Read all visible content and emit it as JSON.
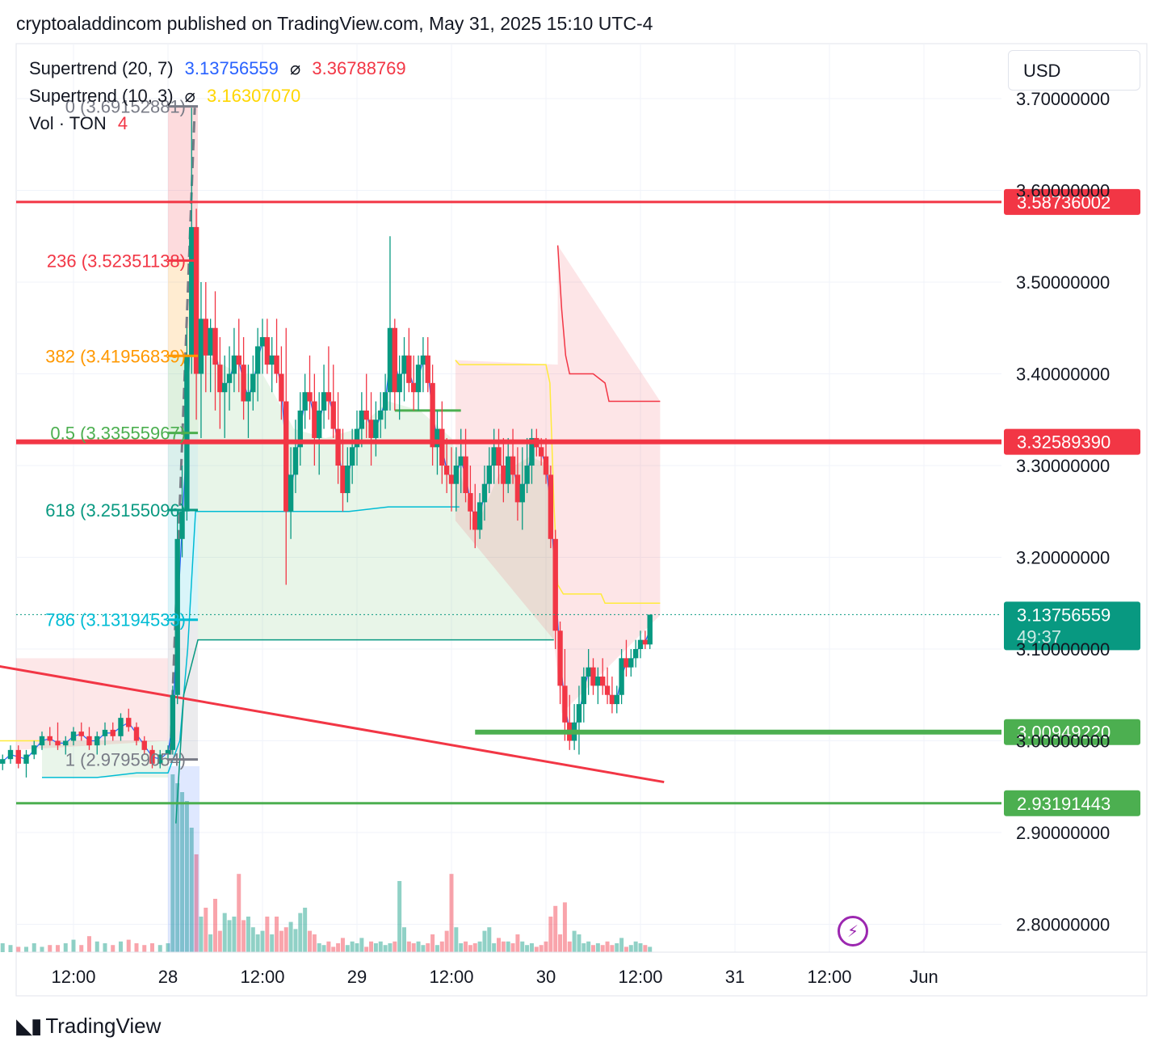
{
  "header": {
    "publisher_line": "cryptoaladdincom published on TradingView.com, May 31, 2025 15:10 UTC-4"
  },
  "legend": {
    "supertrend1_label": "Supertrend (20, 7)",
    "supertrend1_up": "3.13756559",
    "supertrend1_sep": "⌀",
    "supertrend1_down": "3.36788769",
    "supertrend2_label": "Supertrend (10, 3)",
    "supertrend2_sep": "⌀",
    "supertrend2_value": "3.16307070",
    "vol_label": "Vol · TON",
    "vol_value": "4"
  },
  "currency_button": "USD",
  "footer": {
    "brand": "TradingView",
    "logo_icon": "tradingview-logo-icon"
  },
  "lightning_icon": "lightning-icon",
  "colors": {
    "up": "#089981",
    "down": "#f23645",
    "supertrend_up_line": "#2962ff",
    "supertrend_yellow": "#ffeb3b",
    "fib_red": "#f23645",
    "fib_orange": "#ff9800",
    "fib_green": "#4caf50",
    "fib_teal": "#089981",
    "fib_cyan": "#00bcd4",
    "fib_gray": "#787b86",
    "level_green": "#4caf50",
    "price_label_teal": "#089981"
  },
  "chart_data": {
    "type": "candlestick",
    "title": "",
    "price_axis": {
      "ticks": [
        "3.70000000",
        "3.60000000",
        "3.50000000",
        "3.40000000",
        "3.30000000",
        "3.20000000",
        "3.10000000",
        "3.00000000",
        "2.90000000",
        "2.80000000"
      ],
      "tick_values": [
        3.7,
        3.6,
        3.5,
        3.4,
        3.3,
        3.2,
        3.1,
        3.0,
        2.9,
        2.8
      ],
      "range": [
        2.77,
        3.72
      ]
    },
    "time_axis": {
      "ticks": [
        "12:00",
        "28",
        "12:00",
        "29",
        "12:00",
        "30",
        "12:00",
        "31",
        "12:00",
        "Jun"
      ],
      "tick_hours": [
        12,
        24,
        36,
        48,
        60,
        72,
        84,
        96,
        108,
        120
      ],
      "range_hours": [
        -2,
        124
      ]
    },
    "candles": [
      [
        0,
        2.99,
        2.995,
        2.98,
        2.985
      ],
      [
        1,
        2.985,
        2.99,
        2.975,
        2.98
      ],
      [
        2,
        2.98,
        2.99,
        2.97,
        2.975
      ],
      [
        3,
        2.975,
        2.985,
        2.968,
        2.98
      ],
      [
        4,
        2.98,
        2.995,
        2.975,
        2.99
      ],
      [
        5,
        2.99,
        2.995,
        2.97,
        2.975
      ],
      [
        6,
        2.975,
        2.99,
        2.96,
        2.985
      ],
      [
        7,
        2.985,
        3.0,
        2.98,
        2.995
      ],
      [
        8,
        2.995,
        3.01,
        2.99,
        3.005
      ],
      [
        9,
        3.005,
        3.015,
        2.995,
        3.0
      ],
      [
        10,
        3.0,
        3.02,
        2.99,
        2.995
      ],
      [
        11,
        2.995,
        3.005,
        2.985,
        3.0
      ],
      [
        12,
        3.0,
        3.015,
        2.995,
        3.01
      ],
      [
        13,
        3.01,
        3.02,
        3.0,
        3.005
      ],
      [
        14,
        3.005,
        3.015,
        2.99,
        2.995
      ],
      [
        15,
        2.995,
        3.01,
        2.985,
        3.005
      ],
      [
        16,
        3.005,
        3.02,
        2.995,
        3.012
      ],
      [
        17,
        3.012,
        3.02,
        3.0,
        3.005
      ],
      [
        18,
        3.005,
        3.03,
        3.0,
        3.025
      ],
      [
        19,
        3.025,
        3.035,
        3.01,
        3.015
      ],
      [
        20,
        3.015,
        3.02,
        2.995,
        3.0
      ],
      [
        21,
        3.0,
        3.005,
        2.985,
        2.99
      ],
      [
        22,
        2.99,
        2.995,
        2.97,
        2.975
      ],
      [
        23,
        2.975,
        2.99,
        2.97,
        2.985
      ],
      [
        24,
        2.985,
        2.995,
        2.98,
        2.99
      ],
      [
        24.6,
        2.99,
        3.06,
        2.985,
        3.05
      ],
      [
        25.2,
        3.05,
        3.25,
        3.04,
        3.22
      ],
      [
        25.8,
        3.22,
        3.3,
        3.2,
        3.25
      ],
      [
        26.4,
        3.25,
        3.45,
        3.24,
        3.42
      ],
      [
        27.0,
        3.42,
        3.69,
        3.4,
        3.56
      ],
      [
        27.6,
        3.56,
        3.58,
        3.35,
        3.4
      ],
      [
        28.2,
        3.4,
        3.5,
        3.33,
        3.46
      ],
      [
        28.8,
        3.46,
        3.5,
        3.38,
        3.42
      ],
      [
        29.4,
        3.42,
        3.46,
        3.38,
        3.45
      ],
      [
        30.0,
        3.45,
        3.49,
        3.36,
        3.41
      ],
      [
        30.6,
        3.41,
        3.44,
        3.34,
        3.38
      ],
      [
        31.2,
        3.38,
        3.42,
        3.33,
        3.39
      ],
      [
        31.8,
        3.39,
        3.43,
        3.36,
        3.4
      ],
      [
        32.4,
        3.4,
        3.45,
        3.38,
        3.42
      ],
      [
        33.0,
        3.42,
        3.46,
        3.38,
        3.41
      ],
      [
        33.6,
        3.41,
        3.44,
        3.35,
        3.37
      ],
      [
        34.2,
        3.37,
        3.41,
        3.33,
        3.38
      ],
      [
        34.8,
        3.38,
        3.42,
        3.36,
        3.4
      ],
      [
        35.4,
        3.4,
        3.45,
        3.37,
        3.43
      ],
      [
        36.0,
        3.43,
        3.46,
        3.4,
        3.44
      ],
      [
        36.6,
        3.44,
        3.46,
        3.4,
        3.41
      ],
      [
        37.2,
        3.41,
        3.44,
        3.38,
        3.42
      ],
      [
        37.8,
        3.42,
        3.46,
        3.39,
        3.4
      ],
      [
        38.4,
        3.4,
        3.43,
        3.35,
        3.37
      ],
      [
        39.0,
        3.37,
        3.45,
        3.17,
        3.25
      ],
      [
        39.6,
        3.25,
        3.32,
        3.22,
        3.29
      ],
      [
        40.2,
        3.29,
        3.35,
        3.27,
        3.32
      ],
      [
        40.8,
        3.32,
        3.38,
        3.3,
        3.36
      ],
      [
        41.4,
        3.36,
        3.4,
        3.34,
        3.38
      ],
      [
        42.0,
        3.38,
        3.42,
        3.35,
        3.37
      ],
      [
        42.6,
        3.37,
        3.4,
        3.3,
        3.33
      ],
      [
        43.2,
        3.33,
        3.38,
        3.29,
        3.36
      ],
      [
        43.8,
        3.36,
        3.41,
        3.34,
        3.38
      ],
      [
        44.4,
        3.38,
        3.43,
        3.35,
        3.37
      ],
      [
        45.0,
        3.37,
        3.41,
        3.33,
        3.34
      ],
      [
        45.6,
        3.34,
        3.38,
        3.28,
        3.3
      ],
      [
        46.2,
        3.3,
        3.34,
        3.25,
        3.27
      ],
      [
        46.8,
        3.27,
        3.32,
        3.26,
        3.3
      ],
      [
        47.4,
        3.3,
        3.34,
        3.28,
        3.32
      ],
      [
        48.0,
        3.32,
        3.36,
        3.3,
        3.34
      ],
      [
        48.6,
        3.34,
        3.38,
        3.32,
        3.36
      ],
      [
        49.2,
        3.36,
        3.4,
        3.33,
        3.35
      ],
      [
        49.8,
        3.35,
        3.38,
        3.3,
        3.33
      ],
      [
        50.4,
        3.33,
        3.37,
        3.31,
        3.35
      ],
      [
        51.0,
        3.35,
        3.38,
        3.33,
        3.36
      ],
      [
        51.6,
        3.36,
        3.4,
        3.34,
        3.38
      ],
      [
        52.2,
        3.38,
        3.55,
        3.36,
        3.45
      ],
      [
        52.8,
        3.45,
        3.46,
        3.36,
        3.38
      ],
      [
        53.4,
        3.38,
        3.42,
        3.35,
        3.4
      ],
      [
        54.0,
        3.4,
        3.44,
        3.37,
        3.42
      ],
      [
        54.6,
        3.42,
        3.45,
        3.38,
        3.39
      ],
      [
        55.2,
        3.39,
        3.42,
        3.36,
        3.38
      ],
      [
        55.8,
        3.38,
        3.42,
        3.36,
        3.41
      ],
      [
        56.4,
        3.41,
        3.44,
        3.38,
        3.42
      ],
      [
        57.0,
        3.42,
        3.44,
        3.38,
        3.39
      ],
      [
        57.6,
        3.39,
        3.41,
        3.3,
        3.32
      ],
      [
        58.2,
        3.32,
        3.36,
        3.29,
        3.34
      ],
      [
        58.8,
        3.34,
        3.37,
        3.28,
        3.3
      ],
      [
        59.4,
        3.3,
        3.33,
        3.27,
        3.29
      ],
      [
        60.0,
        3.29,
        3.32,
        3.25,
        3.28
      ],
      [
        60.6,
        3.28,
        3.32,
        3.25,
        3.3
      ],
      [
        61.2,
        3.3,
        3.34,
        3.27,
        3.31
      ],
      [
        61.8,
        3.31,
        3.34,
        3.26,
        3.27
      ],
      [
        62.4,
        3.27,
        3.3,
        3.23,
        3.25
      ],
      [
        63.0,
        3.25,
        3.28,
        3.21,
        3.23
      ],
      [
        63.6,
        3.23,
        3.27,
        3.22,
        3.26
      ],
      [
        64.2,
        3.26,
        3.3,
        3.24,
        3.28
      ],
      [
        64.8,
        3.28,
        3.32,
        3.27,
        3.3
      ],
      [
        65.4,
        3.3,
        3.34,
        3.28,
        3.32
      ],
      [
        66.0,
        3.32,
        3.34,
        3.28,
        3.3
      ],
      [
        66.6,
        3.3,
        3.33,
        3.26,
        3.28
      ],
      [
        67.2,
        3.28,
        3.33,
        3.27,
        3.31
      ],
      [
        67.8,
        3.31,
        3.34,
        3.28,
        3.29
      ],
      [
        68.4,
        3.29,
        3.32,
        3.24,
        3.26
      ],
      [
        69.0,
        3.26,
        3.32,
        3.23,
        3.28
      ],
      [
        69.6,
        3.28,
        3.33,
        3.27,
        3.3
      ],
      [
        70.2,
        3.3,
        3.34,
        3.28,
        3.33
      ],
      [
        70.8,
        3.33,
        3.34,
        3.31,
        3.32
      ],
      [
        71.4,
        3.32,
        3.33,
        3.3,
        3.31
      ],
      [
        72.0,
        3.31,
        3.33,
        3.28,
        3.29
      ],
      [
        72.6,
        3.29,
        3.3,
        3.21,
        3.22
      ],
      [
        73.2,
        3.22,
        3.23,
        3.1,
        3.12
      ],
      [
        73.8,
        3.12,
        3.13,
        3.04,
        3.06
      ],
      [
        74.4,
        3.06,
        3.1,
        3.0,
        3.02
      ],
      [
        75.0,
        3.02,
        3.05,
        2.99,
        3.0
      ],
      [
        75.6,
        3.0,
        3.04,
        2.99,
        3.02
      ],
      [
        76.2,
        3.02,
        3.06,
        2.985,
        3.04
      ],
      [
        76.8,
        3.04,
        3.08,
        3.02,
        3.07
      ],
      [
        77.4,
        3.07,
        3.1,
        3.05,
        3.08
      ],
      [
        78.0,
        3.08,
        3.09,
        3.05,
        3.06
      ],
      [
        78.6,
        3.06,
        3.08,
        3.04,
        3.07
      ],
      [
        79.2,
        3.07,
        3.09,
        3.05,
        3.06
      ],
      [
        79.8,
        3.06,
        3.08,
        3.04,
        3.05
      ],
      [
        80.4,
        3.05,
        3.07,
        3.03,
        3.04
      ],
      [
        81.0,
        3.04,
        3.06,
        3.03,
        3.05
      ],
      [
        81.6,
        3.05,
        3.1,
        3.04,
        3.09
      ],
      [
        82.2,
        3.09,
        3.11,
        3.07,
        3.08
      ],
      [
        82.8,
        3.08,
        3.1,
        3.07,
        3.09
      ],
      [
        83.4,
        3.09,
        3.11,
        3.08,
        3.1
      ],
      [
        84.0,
        3.1,
        3.12,
        3.09,
        3.11
      ],
      [
        84.6,
        3.11,
        3.12,
        3.1,
        3.105
      ],
      [
        85.2,
        3.105,
        3.135,
        3.1,
        3.1375
      ]
    ],
    "series": [
      {
        "name": "Supertrend (20, 7)",
        "values": [
          3.13756559,
          3.36788769
        ]
      },
      {
        "name": "Supertrend (10, 3)",
        "values": [
          3.1630707
        ]
      }
    ],
    "fibonacci": [
      {
        "label": "0 (3.69152881)",
        "value": 3.69152881
      },
      {
        "label": "236 (3.52351138)",
        "value": 3.52351138
      },
      {
        "label": "382 (3.41956839)",
        "value": 3.41956839
      },
      {
        "label": "0.5 (3.33555967)",
        "value": 3.33555967
      },
      {
        "label": "618 (3.25155096)",
        "value": 3.25155096
      },
      {
        "label": "786 (3.13194533)",
        "value": 3.13194533
      },
      {
        "label": "1 (2.97959054)",
        "value": 2.97959054
      }
    ],
    "horizontal_levels": [
      {
        "label": "3.58736002",
        "value": 3.58736002,
        "color": "#f23645"
      },
      {
        "label": "3.32589390",
        "value": 3.3258939,
        "color": "#f23645"
      },
      {
        "label": "3.00949220",
        "value": 3.0094922,
        "color": "#4caf50"
      },
      {
        "label": "2.93191443",
        "value": 2.93191443,
        "color": "#4caf50"
      }
    ],
    "current_price": {
      "label": "3.13756559",
      "countdown": "49:37",
      "value": 3.13756559
    },
    "trendline": {
      "from": [
        -2,
        3.088
      ],
      "to": [
        87,
        2.955
      ]
    },
    "volume_label": "Vol · TON 4"
  }
}
